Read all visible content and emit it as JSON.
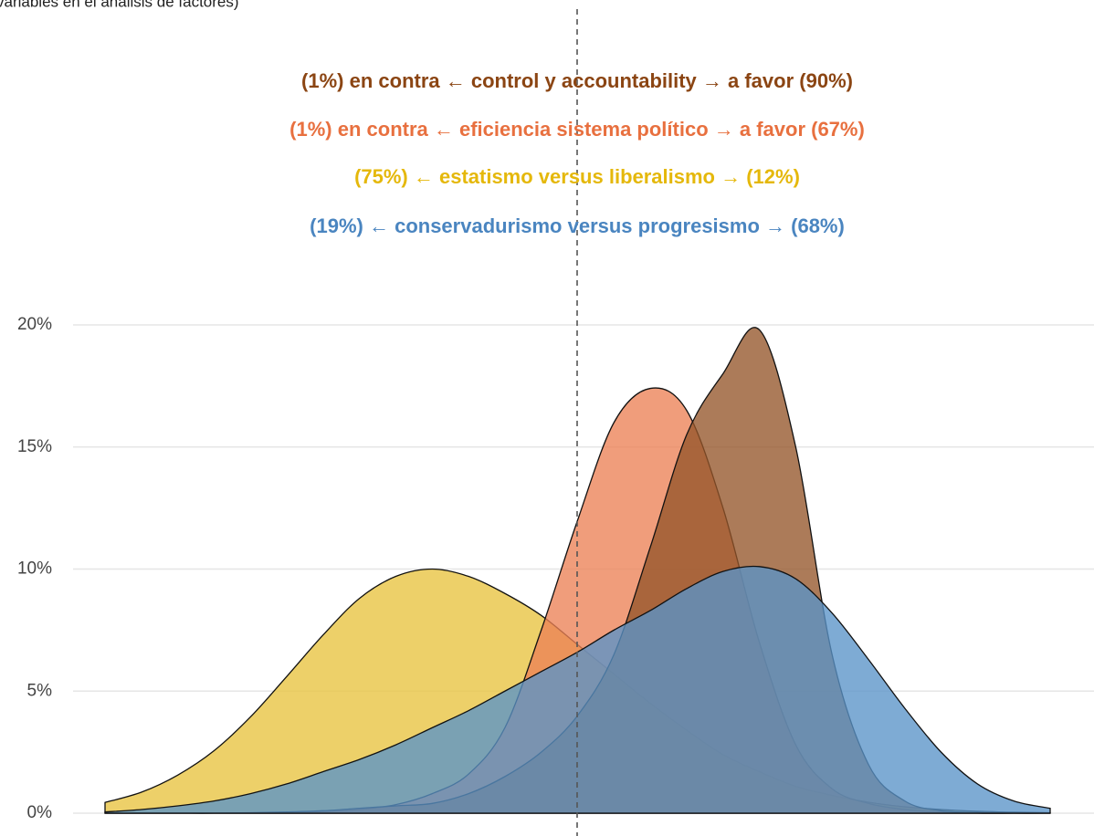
{
  "chart_data": {
    "type": "density",
    "subtitle": "variables en el análisis de factores)",
    "ylim": [
      0,
      20
    ],
    "yticks": [
      {
        "value": 0,
        "label": "0%"
      },
      {
        "value": 5,
        "label": "5%"
      },
      {
        "value": 10,
        "label": "10%"
      },
      {
        "value": 15,
        "label": "15%"
      },
      {
        "value": 20,
        "label": "20%"
      }
    ],
    "grid": true,
    "series": [
      {
        "name": "(75%) ← estatismo versus liberalismo → (12%)",
        "color": "#e8c33f",
        "text_color": "#e5b80b",
        "values": [
          0.44,
          0.86,
          1.56,
          2.56,
          3.94,
          5.6,
          7.3,
          8.8,
          9.7,
          10.0,
          9.7,
          9.0,
          8.1,
          6.9,
          5.7,
          4.5,
          3.4,
          2.4,
          1.7,
          1.1,
          0.73,
          0.45,
          0.26,
          0.15,
          0.08,
          0.04,
          0.02
        ]
      },
      {
        "name": "(1%) en contra ← eficiencia sistema político → a favor (67%)",
        "color": "#ec8256",
        "text_color": "#e8703f",
        "values": [
          0,
          0,
          0,
          0,
          0.01,
          0.03,
          0.07,
          0.15,
          0.35,
          0.8,
          1.6,
          3.5,
          7.5,
          12,
          16,
          17.4,
          16.5,
          12.5,
          7,
          2.8,
          1.0,
          0.4,
          0.15,
          0.05,
          0,
          0,
          0
        ]
      },
      {
        "name": "(1%) en contra ← control y accountability → a favor (90%)",
        "color": "#95562a",
        "text_color": "#8b4513",
        "values": [
          0,
          0,
          0,
          0,
          0.02,
          0.05,
          0.1,
          0.2,
          0.3,
          0.4,
          0.8,
          1.5,
          2.5,
          4,
          6.5,
          10.9,
          15.5,
          18,
          19.8,
          15,
          6.5,
          2,
          0.5,
          0.1,
          0.03,
          0,
          0
        ]
      },
      {
        "name": "(19%) ← conservadurismo versus progresismo → (68%)",
        "color": "#5a93c8",
        "text_color": "#4a85c0",
        "values": [
          0.05,
          0.15,
          0.3,
          0.5,
          0.8,
          1.2,
          1.7,
          2.2,
          2.8,
          3.5,
          4.2,
          5.0,
          5.8,
          6.6,
          7.5,
          8.3,
          9.2,
          9.9,
          10.1,
          9.6,
          8.2,
          6.3,
          4.3,
          2.5,
          1.2,
          0.5,
          0.2
        ]
      }
    ]
  }
}
